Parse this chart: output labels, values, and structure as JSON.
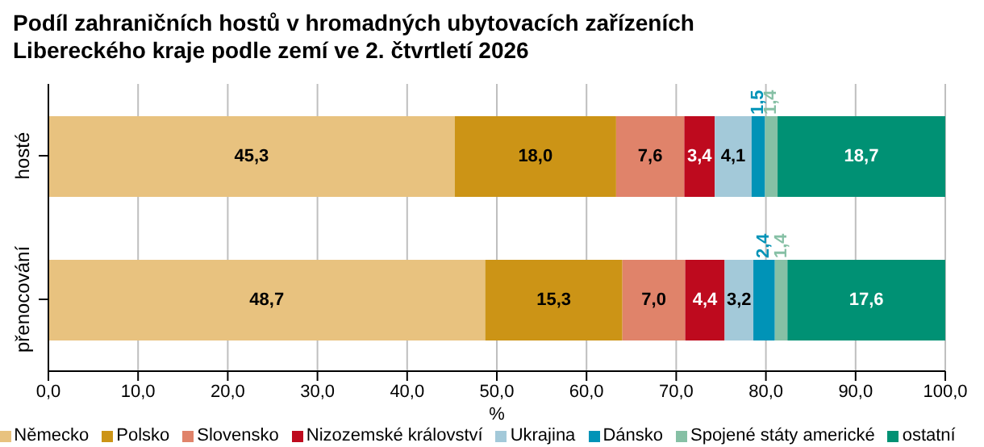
{
  "chart_data": {
    "type": "bar",
    "orientation": "horizontal",
    "stacked": true,
    "title": "Podíl zahraničních hostů v hromadných ubytovacích zařízeních Libereckého kraje podle zemí ve 2. čtvrtletí 2026",
    "xlabel": "%",
    "categories": [
      "hosté",
      "přenocování"
    ],
    "series": [
      {
        "name": "Německo",
        "color": "#e8c27f",
        "values": [
          45.3,
          48.7
        ],
        "value_labels": [
          "45,3",
          "48,7"
        ]
      },
      {
        "name": "Polsko",
        "color": "#cc9416",
        "values": [
          18.0,
          15.3
        ],
        "value_labels": [
          "18,0",
          "15,3"
        ]
      },
      {
        "name": "Slovensko",
        "color": "#e0836a",
        "values": [
          7.6,
          7.0
        ],
        "value_labels": [
          "7,6",
          "7,0"
        ]
      },
      {
        "name": "Nizozemské království",
        "color": "#be0a1e",
        "values": [
          3.4,
          4.4
        ],
        "value_labels": [
          "3,4",
          "4,4"
        ]
      },
      {
        "name": "Ukrajina",
        "color": "#a3c9d9",
        "values": [
          4.1,
          3.2
        ],
        "value_labels": [
          "4,1",
          "3,2"
        ]
      },
      {
        "name": "Dánsko",
        "color": "#0093b7",
        "values": [
          1.5,
          2.4
        ],
        "value_labels": [
          "1,5",
          "2,4"
        ]
      },
      {
        "name": "Spojené státy americké",
        "color": "#86c0a5",
        "values": [
          1.4,
          1.4
        ],
        "value_labels": [
          "1,4",
          "1,4"
        ]
      },
      {
        "name": "ostatní",
        "color": "#009174",
        "values": [
          18.7,
          17.6
        ],
        "value_labels": [
          "18,7",
          "17,6"
        ]
      }
    ],
    "xlim": [
      0,
      100
    ],
    "xticks": [
      {
        "value": 0,
        "label": "0,0"
      },
      {
        "value": 10,
        "label": "10,0"
      },
      {
        "value": 20,
        "label": "20,0"
      },
      {
        "value": 30,
        "label": "30,0"
      },
      {
        "value": 40,
        "label": "40,0"
      },
      {
        "value": 50,
        "label": "50,0"
      },
      {
        "value": 60,
        "label": "60,0"
      },
      {
        "value": 70,
        "label": "70,0"
      },
      {
        "value": 80,
        "label": "80,0"
      },
      {
        "value": 90,
        "label": "90,0"
      },
      {
        "value": 100,
        "label": "100,0"
      }
    ],
    "grid": "x",
    "legend": "bottom"
  }
}
